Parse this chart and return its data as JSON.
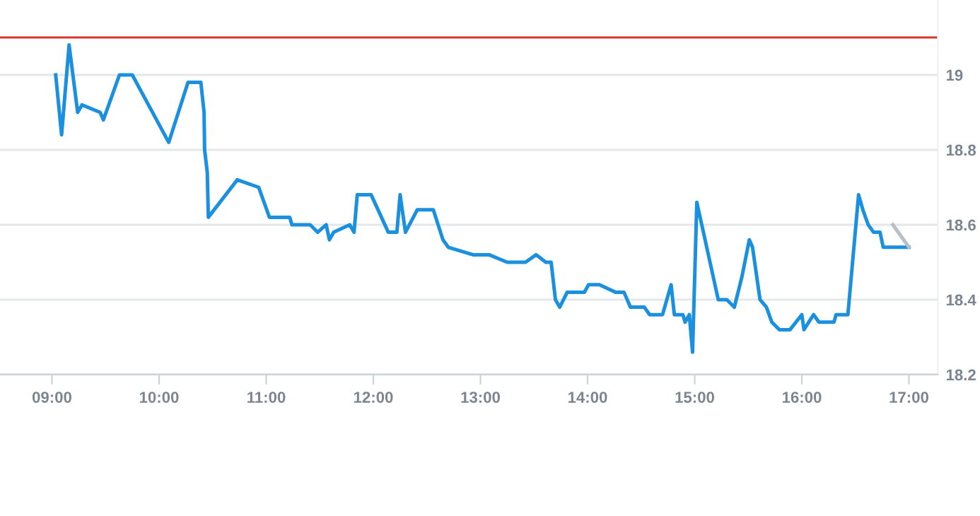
{
  "chart_data": {
    "type": "line",
    "x": [
      9.035,
      9.09,
      9.16,
      9.24,
      9.28,
      9.45,
      9.48,
      9.63,
      9.75,
      10.09,
      10.27,
      10.39,
      10.42,
      10.425,
      10.45,
      10.46,
      10.73,
      10.93,
      11.03,
      11.22,
      11.24,
      11.41,
      11.48,
      11.56,
      11.59,
      11.63,
      11.78,
      11.82,
      11.85,
      11.98,
      12.14,
      12.22,
      12.25,
      12.3,
      12.41,
      12.56,
      12.65,
      12.7,
      12.93,
      13.08,
      13.25,
      13.42,
      13.52,
      13.61,
      13.66,
      13.7,
      13.74,
      13.81,
      13.97,
      14.01,
      14.11,
      14.26,
      14.34,
      14.4,
      14.53,
      14.58,
      14.7,
      14.78,
      14.81,
      14.89,
      14.91,
      14.95,
      14.98,
      15.02,
      15.22,
      15.3,
      15.37,
      15.44,
      15.51,
      15.54,
      15.61,
      15.67,
      15.72,
      15.79,
      15.89,
      16.0,
      16.02,
      16.11,
      16.16,
      16.3,
      16.32,
      16.43,
      16.53,
      16.57,
      16.62,
      16.67,
      16.73,
      16.76,
      17.0
    ],
    "series": [
      {
        "color": "#1a90de",
        "values": [
          19.0,
          18.84,
          19.08,
          18.9,
          18.92,
          18.9,
          18.88,
          19.0,
          19.0,
          18.82,
          18.98,
          18.98,
          18.9,
          18.8,
          18.74,
          18.62,
          18.72,
          18.7,
          18.62,
          18.62,
          18.6,
          18.6,
          18.58,
          18.6,
          18.56,
          18.58,
          18.6,
          18.58,
          18.68,
          18.68,
          18.58,
          18.58,
          18.68,
          18.58,
          18.64,
          18.64,
          18.56,
          18.54,
          18.52,
          18.52,
          18.5,
          18.5,
          18.52,
          18.5,
          18.5,
          18.4,
          18.38,
          18.42,
          18.42,
          18.44,
          18.44,
          18.42,
          18.42,
          18.38,
          18.38,
          18.36,
          18.36,
          18.44,
          18.36,
          18.36,
          18.34,
          18.36,
          18.26,
          18.66,
          18.4,
          18.4,
          18.38,
          18.46,
          18.56,
          18.54,
          18.4,
          18.38,
          18.34,
          18.32,
          18.32,
          18.36,
          18.32,
          18.36,
          18.34,
          18.34,
          18.36,
          18.36,
          18.68,
          18.64,
          18.6,
          18.58,
          18.58,
          18.54,
          18.54
        ]
      },
      {
        "color": "#b8bfc6",
        "x": [
          16.85,
          17.0
        ],
        "values": [
          18.6,
          18.54
        ]
      }
    ],
    "xlim": [
      8.515,
      17.27
    ],
    "xticks": [
      {
        "value": 9,
        "label": "09:00"
      },
      {
        "value": 10,
        "label": "10:00"
      },
      {
        "value": 11,
        "label": "11:00"
      },
      {
        "value": 12,
        "label": "12:00"
      },
      {
        "value": 13,
        "label": "13:00"
      },
      {
        "value": 14,
        "label": "14:00"
      },
      {
        "value": 15,
        "label": "15:00"
      },
      {
        "value": 16,
        "label": "16:00"
      },
      {
        "value": 17,
        "label": "17:00"
      }
    ],
    "ylim": [
      18.2,
      19.2
    ],
    "yticks": [
      18.2,
      18.4,
      18.6,
      18.8,
      19
    ],
    "grid": "y",
    "ref_lines": [
      {
        "axis": "y",
        "value": 19.1,
        "color": "#d9342b"
      }
    ]
  }
}
